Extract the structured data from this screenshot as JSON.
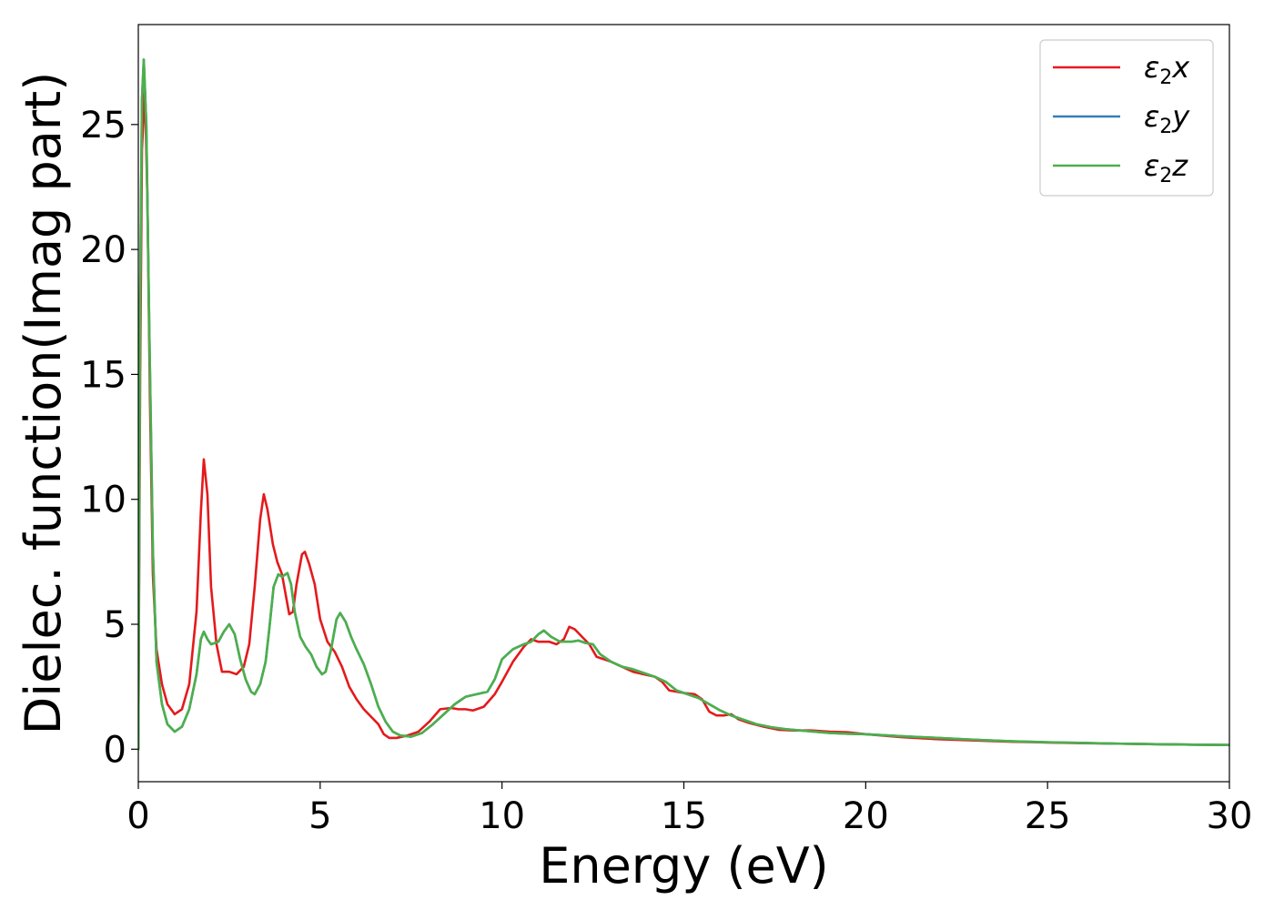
{
  "chart_data": {
    "type": "line",
    "xlabel": "Energy (eV)",
    "ylabel": "Dielec. function(Imag part)",
    "xlim": [
      0,
      30
    ],
    "ylim": [
      -1.3,
      29
    ],
    "xticks": [
      0,
      5,
      10,
      15,
      20,
      25,
      30
    ],
    "yticks": [
      0,
      5,
      10,
      15,
      20,
      25
    ],
    "grid": false,
    "legend_position": "top-right",
    "series": [
      {
        "name": "ε₂x",
        "legend_base": "ε",
        "legend_sub": "2",
        "legend_var": "x",
        "color": "#e41a1c",
        "points": [
          [
            0,
            0
          ],
          [
            0.05,
            15
          ],
          [
            0.1,
            24
          ],
          [
            0.18,
            26.5
          ],
          [
            0.25,
            22
          ],
          [
            0.32,
            14
          ],
          [
            0.4,
            7
          ],
          [
            0.5,
            4
          ],
          [
            0.65,
            2.6
          ],
          [
            0.8,
            1.8
          ],
          [
            1.0,
            1.4
          ],
          [
            1.2,
            1.6
          ],
          [
            1.4,
            2.6
          ],
          [
            1.6,
            5.5
          ],
          [
            1.72,
            9.5
          ],
          [
            1.8,
            11.6
          ],
          [
            1.9,
            10.2
          ],
          [
            2.0,
            6.5
          ],
          [
            2.15,
            4.2
          ],
          [
            2.3,
            3.1
          ],
          [
            2.5,
            3.1
          ],
          [
            2.7,
            3.0
          ],
          [
            2.9,
            3.3
          ],
          [
            3.05,
            4.2
          ],
          [
            3.2,
            6.5
          ],
          [
            3.35,
            9.2
          ],
          [
            3.45,
            10.2
          ],
          [
            3.55,
            9.6
          ],
          [
            3.7,
            8.2
          ],
          [
            3.82,
            7.5
          ],
          [
            3.95,
            7.0
          ],
          [
            4.05,
            6.2
          ],
          [
            4.15,
            5.4
          ],
          [
            4.25,
            5.5
          ],
          [
            4.35,
            6.6
          ],
          [
            4.5,
            7.8
          ],
          [
            4.58,
            7.9
          ],
          [
            4.7,
            7.4
          ],
          [
            4.85,
            6.6
          ],
          [
            5.0,
            5.2
          ],
          [
            5.2,
            4.3
          ],
          [
            5.4,
            3.9
          ],
          [
            5.6,
            3.3
          ],
          [
            5.8,
            2.5
          ],
          [
            6.0,
            2.0
          ],
          [
            6.2,
            1.6
          ],
          [
            6.4,
            1.3
          ],
          [
            6.6,
            1.0
          ],
          [
            6.75,
            0.6
          ],
          [
            6.9,
            0.45
          ],
          [
            7.1,
            0.45
          ],
          [
            7.4,
            0.55
          ],
          [
            7.7,
            0.7
          ],
          [
            8.0,
            1.1
          ],
          [
            8.3,
            1.6
          ],
          [
            8.6,
            1.65
          ],
          [
            8.8,
            1.6
          ],
          [
            9.0,
            1.6
          ],
          [
            9.2,
            1.55
          ],
          [
            9.5,
            1.7
          ],
          [
            9.8,
            2.2
          ],
          [
            10.0,
            2.7
          ],
          [
            10.3,
            3.5
          ],
          [
            10.6,
            4.1
          ],
          [
            10.8,
            4.4
          ],
          [
            11.0,
            4.3
          ],
          [
            11.3,
            4.3
          ],
          [
            11.5,
            4.2
          ],
          [
            11.7,
            4.4
          ],
          [
            11.85,
            4.9
          ],
          [
            12.0,
            4.8
          ],
          [
            12.2,
            4.5
          ],
          [
            12.4,
            4.2
          ],
          [
            12.6,
            3.7
          ],
          [
            12.8,
            3.6
          ],
          [
            13.0,
            3.5
          ],
          [
            13.3,
            3.3
          ],
          [
            13.6,
            3.1
          ],
          [
            13.9,
            3.0
          ],
          [
            14.2,
            2.9
          ],
          [
            14.4,
            2.7
          ],
          [
            14.6,
            2.35
          ],
          [
            14.8,
            2.3
          ],
          [
            15.0,
            2.25
          ],
          [
            15.3,
            2.2
          ],
          [
            15.5,
            2.0
          ],
          [
            15.7,
            1.5
          ],
          [
            15.9,
            1.35
          ],
          [
            16.1,
            1.35
          ],
          [
            16.3,
            1.4
          ],
          [
            16.5,
            1.2
          ],
          [
            16.8,
            1.05
          ],
          [
            17.2,
            0.9
          ],
          [
            17.6,
            0.78
          ],
          [
            18.0,
            0.75
          ],
          [
            18.5,
            0.75
          ],
          [
            19.0,
            0.7
          ],
          [
            19.5,
            0.68
          ],
          [
            20.0,
            0.6
          ],
          [
            21.0,
            0.48
          ],
          [
            22.0,
            0.4
          ],
          [
            23.0,
            0.35
          ],
          [
            24.0,
            0.3
          ],
          [
            25.0,
            0.27
          ],
          [
            26.0,
            0.24
          ],
          [
            27.0,
            0.22
          ],
          [
            28.0,
            0.2
          ],
          [
            29.0,
            0.18
          ],
          [
            30.0,
            0.17
          ]
        ]
      },
      {
        "name": "ε₂y",
        "legend_base": "ε",
        "legend_sub": "2",
        "legend_var": "y",
        "color": "#377eb8",
        "points": [
          [
            0,
            0
          ],
          [
            0.05,
            18
          ],
          [
            0.1,
            26
          ],
          [
            0.15,
            27.6
          ],
          [
            0.22,
            25
          ],
          [
            0.3,
            17
          ],
          [
            0.4,
            8
          ],
          [
            0.5,
            3.5
          ],
          [
            0.65,
            1.8
          ],
          [
            0.8,
            1.0
          ],
          [
            1.0,
            0.7
          ],
          [
            1.2,
            0.9
          ],
          [
            1.4,
            1.6
          ],
          [
            1.6,
            3.0
          ],
          [
            1.72,
            4.4
          ],
          [
            1.8,
            4.7
          ],
          [
            1.9,
            4.4
          ],
          [
            2.0,
            4.2
          ],
          [
            2.2,
            4.3
          ],
          [
            2.35,
            4.7
          ],
          [
            2.5,
            5.0
          ],
          [
            2.65,
            4.6
          ],
          [
            2.8,
            3.6
          ],
          [
            2.95,
            2.8
          ],
          [
            3.1,
            2.3
          ],
          [
            3.2,
            2.2
          ],
          [
            3.35,
            2.6
          ],
          [
            3.5,
            3.5
          ],
          [
            3.6,
            4.8
          ],
          [
            3.72,
            6.5
          ],
          [
            3.85,
            7.0
          ],
          [
            3.95,
            6.9
          ],
          [
            4.1,
            7.05
          ],
          [
            4.2,
            6.6
          ],
          [
            4.3,
            5.5
          ],
          [
            4.45,
            4.5
          ],
          [
            4.6,
            4.1
          ],
          [
            4.75,
            3.8
          ],
          [
            4.9,
            3.3
          ],
          [
            5.05,
            3.0
          ],
          [
            5.15,
            3.1
          ],
          [
            5.3,
            4.0
          ],
          [
            5.45,
            5.2
          ],
          [
            5.55,
            5.45
          ],
          [
            5.7,
            5.1
          ],
          [
            5.85,
            4.5
          ],
          [
            6.0,
            4.0
          ],
          [
            6.2,
            3.4
          ],
          [
            6.4,
            2.6
          ],
          [
            6.6,
            1.7
          ],
          [
            6.8,
            1.1
          ],
          [
            7.0,
            0.7
          ],
          [
            7.2,
            0.55
          ],
          [
            7.5,
            0.5
          ],
          [
            7.8,
            0.65
          ],
          [
            8.1,
            1.0
          ],
          [
            8.4,
            1.4
          ],
          [
            8.7,
            1.8
          ],
          [
            9.0,
            2.1
          ],
          [
            9.3,
            2.2
          ],
          [
            9.6,
            2.3
          ],
          [
            9.8,
            2.8
          ],
          [
            10.0,
            3.6
          ],
          [
            10.3,
            4.0
          ],
          [
            10.6,
            4.2
          ],
          [
            10.8,
            4.3
          ],
          [
            11.0,
            4.6
          ],
          [
            11.15,
            4.75
          ],
          [
            11.35,
            4.5
          ],
          [
            11.6,
            4.3
          ],
          [
            11.9,
            4.3
          ],
          [
            12.1,
            4.35
          ],
          [
            12.3,
            4.25
          ],
          [
            12.5,
            4.2
          ],
          [
            12.7,
            3.8
          ],
          [
            13.0,
            3.5
          ],
          [
            13.3,
            3.3
          ],
          [
            13.6,
            3.2
          ],
          [
            13.9,
            3.05
          ],
          [
            14.2,
            2.9
          ],
          [
            14.5,
            2.7
          ],
          [
            14.8,
            2.35
          ],
          [
            15.1,
            2.2
          ],
          [
            15.4,
            2.05
          ],
          [
            15.7,
            1.8
          ],
          [
            16.0,
            1.55
          ],
          [
            16.3,
            1.35
          ],
          [
            16.6,
            1.2
          ],
          [
            17.0,
            1.0
          ],
          [
            17.4,
            0.88
          ],
          [
            17.8,
            0.8
          ],
          [
            18.2,
            0.75
          ],
          [
            18.6,
            0.7
          ],
          [
            19.0,
            0.65
          ],
          [
            19.5,
            0.62
          ],
          [
            20.0,
            0.6
          ],
          [
            21.0,
            0.52
          ],
          [
            22.0,
            0.45
          ],
          [
            23.0,
            0.38
          ],
          [
            24.0,
            0.32
          ],
          [
            25.0,
            0.28
          ],
          [
            26.0,
            0.25
          ],
          [
            27.0,
            0.22
          ],
          [
            28.0,
            0.2
          ],
          [
            29.0,
            0.18
          ],
          [
            30.0,
            0.17
          ]
        ]
      },
      {
        "name": "ε₂z",
        "legend_base": "ε",
        "legend_sub": "2",
        "legend_var": "z",
        "color": "#4daf4a",
        "points": [
          [
            0,
            0
          ],
          [
            0.05,
            18
          ],
          [
            0.1,
            26
          ],
          [
            0.15,
            27.6
          ],
          [
            0.22,
            25
          ],
          [
            0.3,
            17
          ],
          [
            0.4,
            8
          ],
          [
            0.5,
            3.5
          ],
          [
            0.65,
            1.8
          ],
          [
            0.8,
            1.0
          ],
          [
            1.0,
            0.7
          ],
          [
            1.2,
            0.9
          ],
          [
            1.4,
            1.6
          ],
          [
            1.6,
            3.0
          ],
          [
            1.72,
            4.4
          ],
          [
            1.8,
            4.7
          ],
          [
            1.9,
            4.4
          ],
          [
            2.0,
            4.2
          ],
          [
            2.2,
            4.3
          ],
          [
            2.35,
            4.7
          ],
          [
            2.5,
            5.0
          ],
          [
            2.65,
            4.6
          ],
          [
            2.8,
            3.6
          ],
          [
            2.95,
            2.8
          ],
          [
            3.1,
            2.3
          ],
          [
            3.2,
            2.2
          ],
          [
            3.35,
            2.6
          ],
          [
            3.5,
            3.5
          ],
          [
            3.6,
            4.8
          ],
          [
            3.72,
            6.5
          ],
          [
            3.85,
            7.0
          ],
          [
            3.95,
            6.9
          ],
          [
            4.1,
            7.05
          ],
          [
            4.2,
            6.6
          ],
          [
            4.3,
            5.5
          ],
          [
            4.45,
            4.5
          ],
          [
            4.6,
            4.1
          ],
          [
            4.75,
            3.8
          ],
          [
            4.9,
            3.3
          ],
          [
            5.05,
            3.0
          ],
          [
            5.15,
            3.1
          ],
          [
            5.3,
            4.0
          ],
          [
            5.45,
            5.2
          ],
          [
            5.55,
            5.45
          ],
          [
            5.7,
            5.1
          ],
          [
            5.85,
            4.5
          ],
          [
            6.0,
            4.0
          ],
          [
            6.2,
            3.4
          ],
          [
            6.4,
            2.6
          ],
          [
            6.6,
            1.7
          ],
          [
            6.8,
            1.1
          ],
          [
            7.0,
            0.7
          ],
          [
            7.2,
            0.55
          ],
          [
            7.5,
            0.5
          ],
          [
            7.8,
            0.65
          ],
          [
            8.1,
            1.0
          ],
          [
            8.4,
            1.4
          ],
          [
            8.7,
            1.8
          ],
          [
            9.0,
            2.1
          ],
          [
            9.3,
            2.2
          ],
          [
            9.6,
            2.3
          ],
          [
            9.8,
            2.8
          ],
          [
            10.0,
            3.6
          ],
          [
            10.3,
            4.0
          ],
          [
            10.6,
            4.2
          ],
          [
            10.8,
            4.3
          ],
          [
            11.0,
            4.6
          ],
          [
            11.15,
            4.75
          ],
          [
            11.35,
            4.5
          ],
          [
            11.6,
            4.3
          ],
          [
            11.9,
            4.3
          ],
          [
            12.1,
            4.35
          ],
          [
            12.3,
            4.25
          ],
          [
            12.5,
            4.2
          ],
          [
            12.7,
            3.8
          ],
          [
            13.0,
            3.5
          ],
          [
            13.3,
            3.3
          ],
          [
            13.6,
            3.2
          ],
          [
            13.9,
            3.05
          ],
          [
            14.2,
            2.9
          ],
          [
            14.5,
            2.7
          ],
          [
            14.8,
            2.35
          ],
          [
            15.1,
            2.2
          ],
          [
            15.4,
            2.05
          ],
          [
            15.7,
            1.8
          ],
          [
            16.0,
            1.55
          ],
          [
            16.3,
            1.35
          ],
          [
            16.6,
            1.2
          ],
          [
            17.0,
            1.0
          ],
          [
            17.4,
            0.88
          ],
          [
            17.8,
            0.8
          ],
          [
            18.2,
            0.75
          ],
          [
            18.6,
            0.7
          ],
          [
            19.0,
            0.65
          ],
          [
            19.5,
            0.62
          ],
          [
            20.0,
            0.6
          ],
          [
            21.0,
            0.52
          ],
          [
            22.0,
            0.45
          ],
          [
            23.0,
            0.38
          ],
          [
            24.0,
            0.32
          ],
          [
            25.0,
            0.28
          ],
          [
            26.0,
            0.25
          ],
          [
            27.0,
            0.22
          ],
          [
            28.0,
            0.2
          ],
          [
            29.0,
            0.18
          ],
          [
            30.0,
            0.17
          ]
        ]
      }
    ]
  }
}
